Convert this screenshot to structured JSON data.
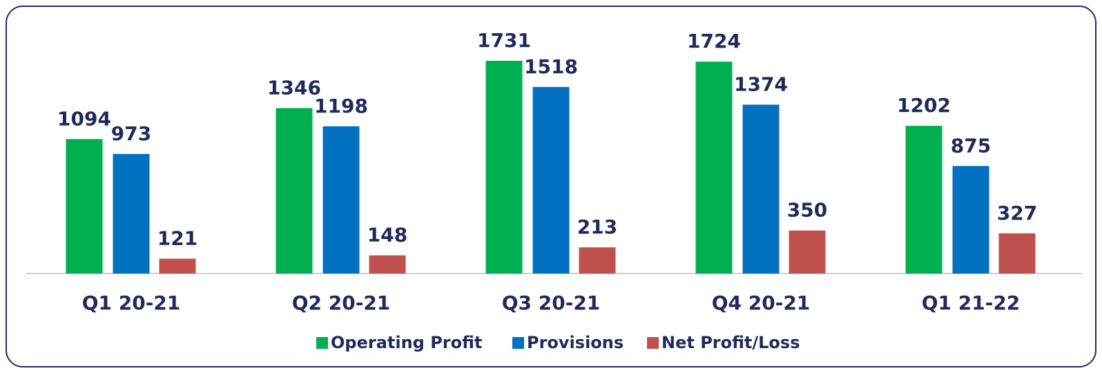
{
  "chart_data": {
    "type": "bar",
    "categories": [
      "Q1 20-21",
      "Q2 20-21",
      "Q3 20-21",
      "Q4 20-21",
      "Q1 21-22"
    ],
    "series": [
      {
        "name": "Operating Profit",
        "color": "#00b050",
        "values": [
          1094,
          1346,
          1731,
          1724,
          1202
        ]
      },
      {
        "name": "Provisions",
        "color": "#0070c0",
        "values": [
          973,
          1198,
          1518,
          1374,
          875
        ]
      },
      {
        "name": "Net Profit/Loss",
        "color": "#c0504d",
        "values": [
          121,
          148,
          213,
          350,
          327
        ]
      }
    ],
    "legend": "bottom"
  }
}
